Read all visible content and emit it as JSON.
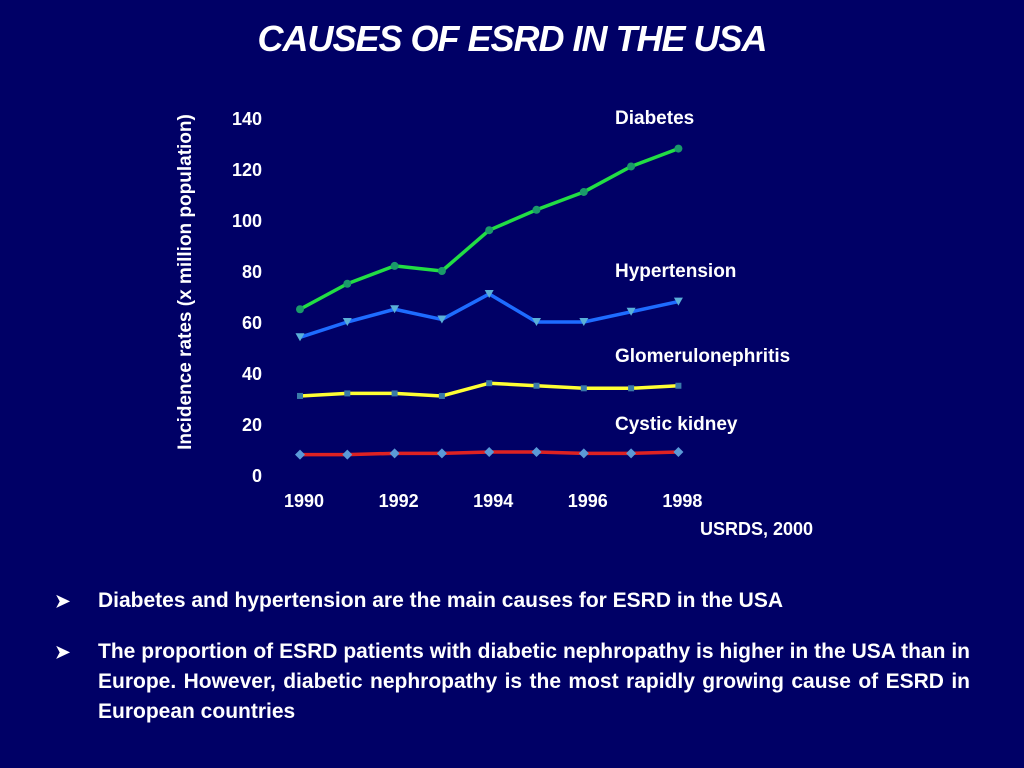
{
  "title": "CAUSES OF ESRD IN THE USA",
  "source": "USRDS, 2000",
  "bullet_icon": "arrowhead-bullet-icon",
  "bullets": [
    "Diabetes and hypertension are the main causes for ESRD in the USA",
    "The proportion of ESRD patients with diabetic nephropathy is higher in the USA than in Europe. However, diabetic nephropathy is the most rapidly growing cause of ESRD in European countries"
  ],
  "chart_data": {
    "type": "line",
    "title": "CAUSES OF ESRD IN THE USA",
    "xlabel": "",
    "ylabel": "Incidence rates (x million population)",
    "x": [
      1990,
      1991,
      1992,
      1993,
      1994,
      1995,
      1996,
      1997,
      1998
    ],
    "x_tick_labels": [
      "1990",
      "1992",
      "1994",
      "1996",
      "1998"
    ],
    "y_tick_labels": [
      "0",
      "20",
      "40",
      "60",
      "80",
      "100",
      "120",
      "140"
    ],
    "ylim": [
      0,
      140
    ],
    "grid": false,
    "series": [
      {
        "name": "Diabetes",
        "color": "#22dd44",
        "marker": "circle",
        "values": [
          65,
          75,
          82,
          80,
          96,
          104,
          111,
          121,
          128
        ]
      },
      {
        "name": "Hypertension",
        "color": "#1e6cff",
        "marker": "triangle-down",
        "values": [
          54,
          60,
          65,
          61,
          71,
          60,
          60,
          64,
          68
        ]
      },
      {
        "name": "Glomerulonephritis",
        "color": "#ffff33",
        "marker": "square",
        "values": [
          31,
          32,
          32,
          31,
          36,
          35,
          34,
          34,
          35
        ]
      },
      {
        "name": "Cystic kidney",
        "color": "#dd2222",
        "marker": "diamond",
        "values": [
          8,
          8,
          8.5,
          8.5,
          9,
          9,
          8.5,
          8.5,
          9
        ]
      }
    ]
  }
}
